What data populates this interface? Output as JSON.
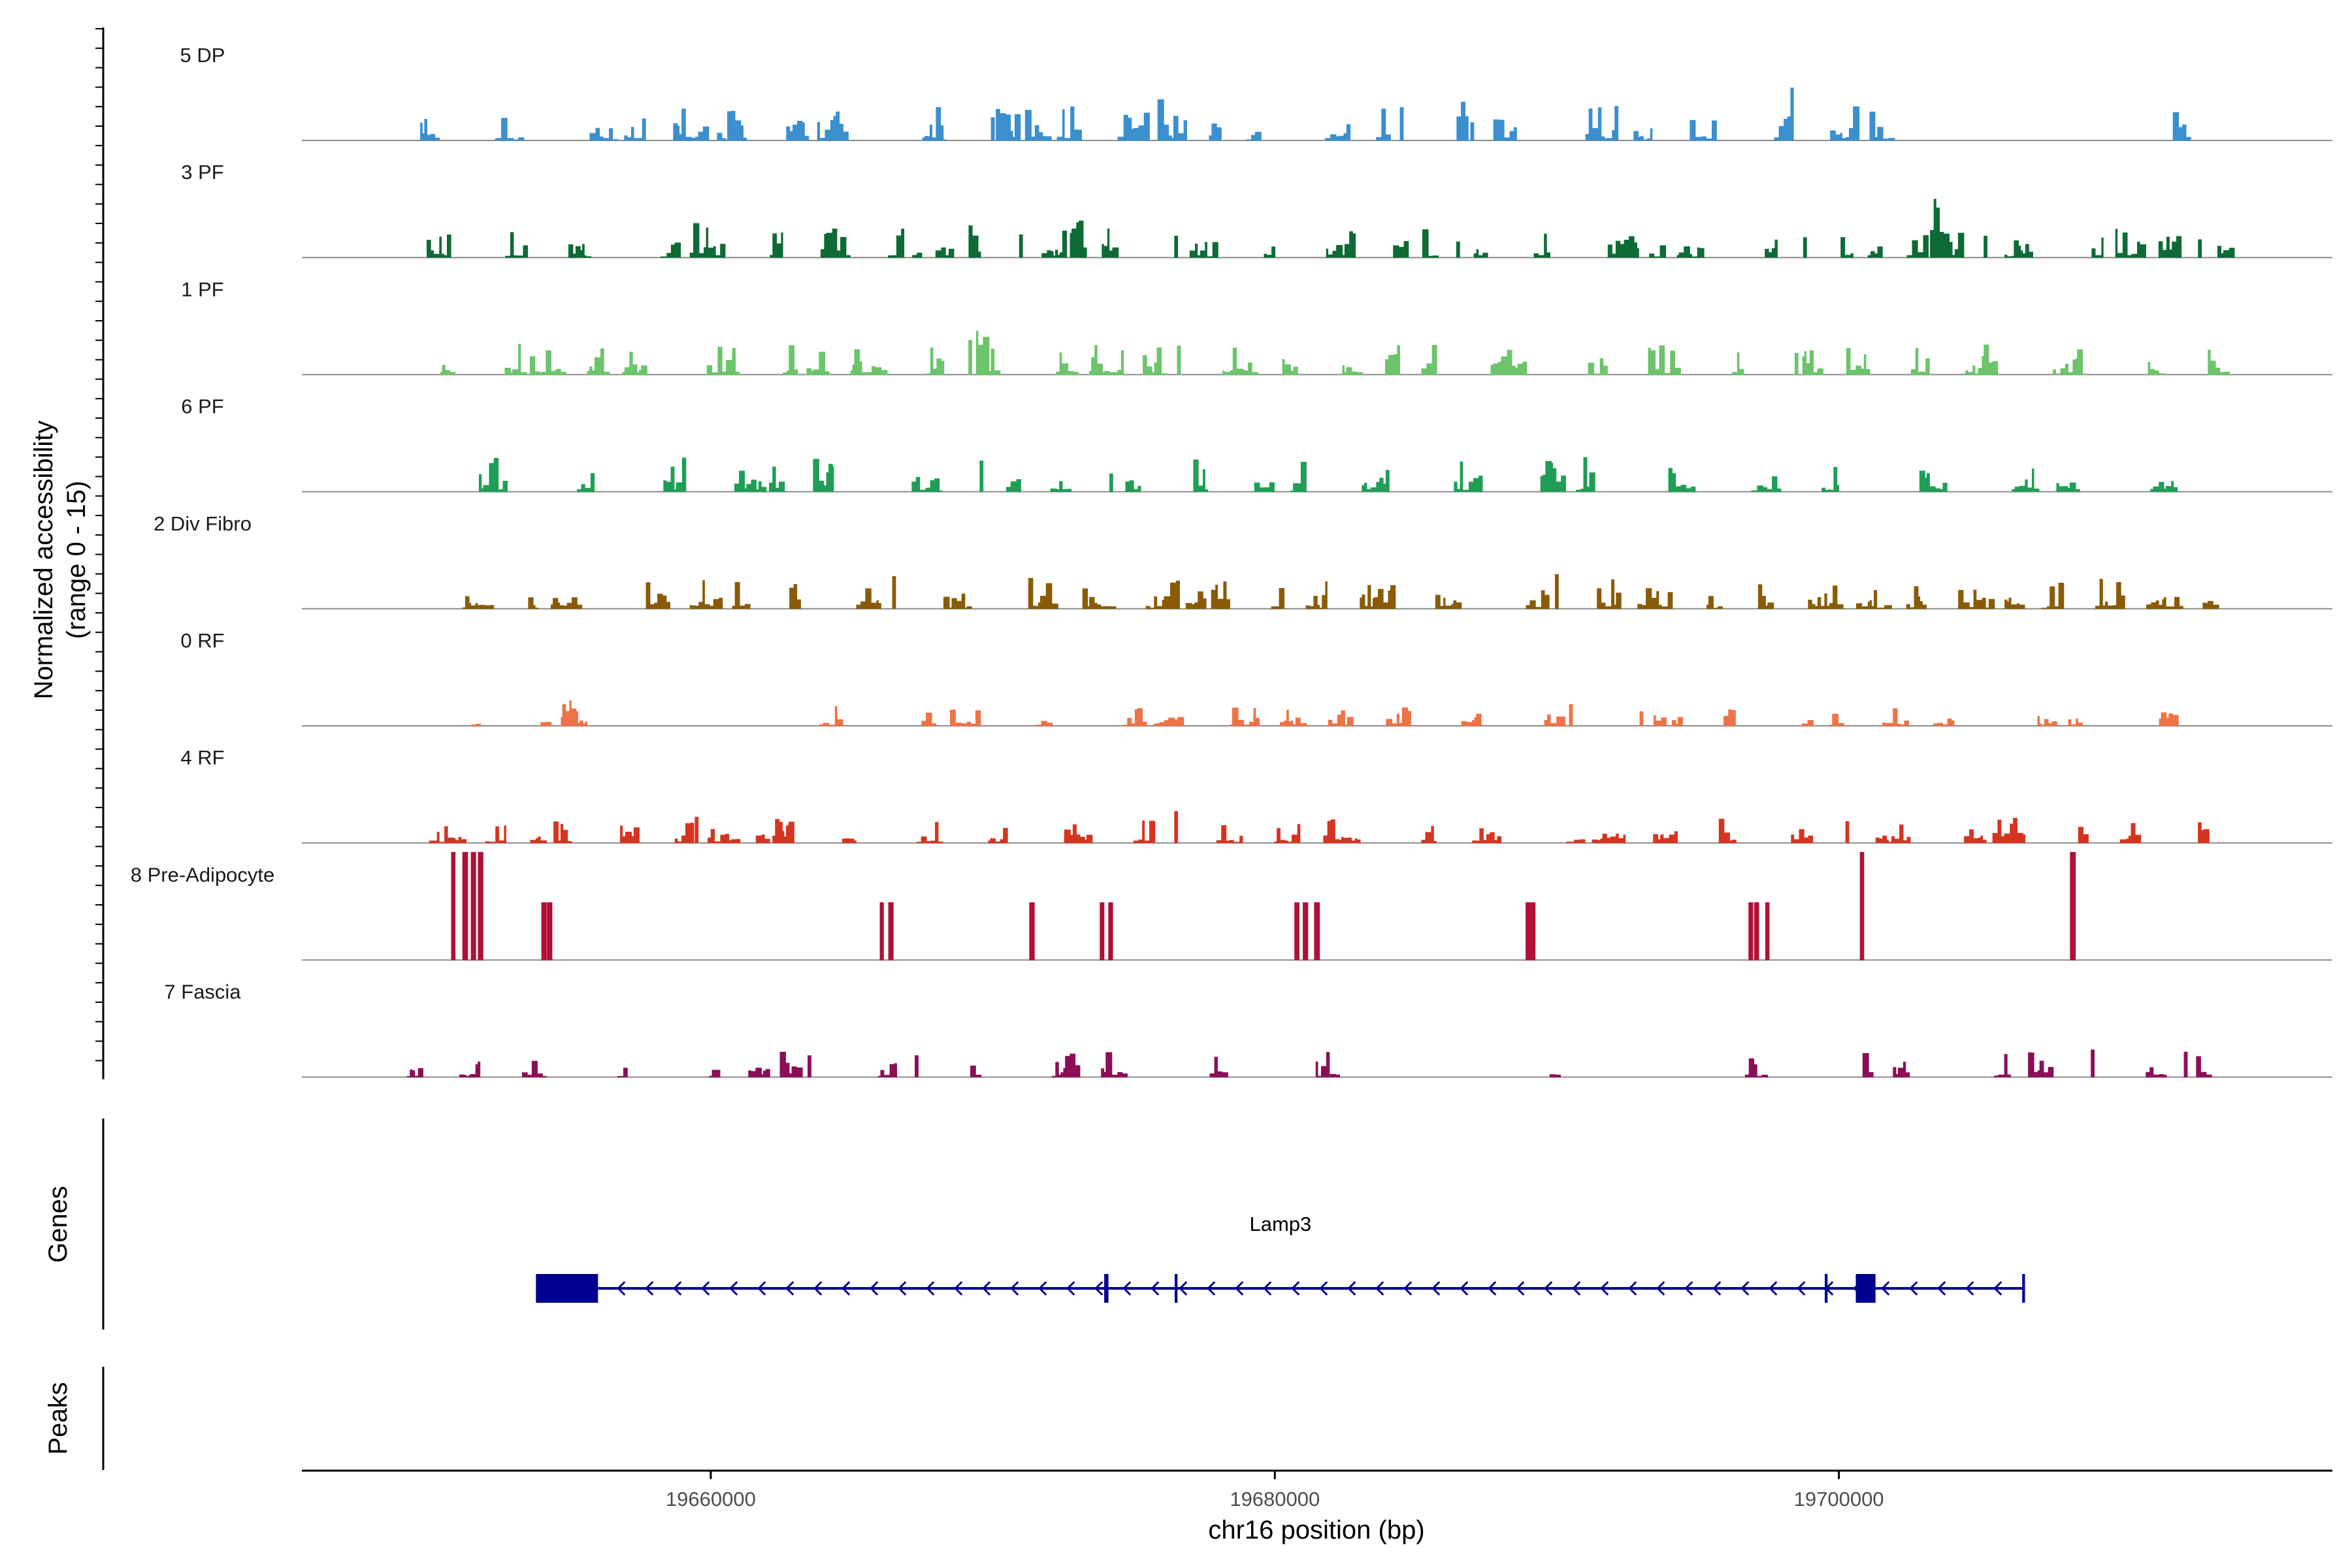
{
  "chart_data": {
    "type": "area",
    "title": "",
    "region": {
      "chrom": "chr16",
      "start": 19645500,
      "end": 19717500
    },
    "xlabel": "chr16 position (bp)",
    "xticks": [
      19660000,
      19680000,
      19700000
    ],
    "xtick_labels": [
      "19660000",
      "19680000",
      "19700000"
    ],
    "ylabel_line1": "Normalized accessibility",
    "ylabel_line2": "(range 0 - 15)",
    "ylim": [
      0,
      15
    ],
    "tracks": [
      {
        "name": "5 DP",
        "color": "#3a8fcf",
        "seed": 11,
        "density": 0.55,
        "amplitude": 4.5,
        "gaps": [
          [
            19646800,
            19649000
          ],
          [
            19702800,
            19709500
          ]
        ],
        "peaks": [
          [
            19664500,
            4.0
          ],
          [
            19670000,
            3.2
          ],
          [
            19675500,
            3.8
          ],
          [
            19684500,
            4.6
          ],
          [
            19687000,
            2.5
          ],
          [
            19698300,
            3.0
          ]
        ]
      },
      {
        "name": "3 PF",
        "color": "#0e6b35",
        "seed": 23,
        "density": 0.55,
        "amplitude": 4.5,
        "gaps": [
          [
            19645500,
            19648400
          ]
        ],
        "peaks": [
          [
            19671000,
            3.2
          ],
          [
            19672800,
            3.4
          ],
          [
            19676500,
            3.0
          ],
          [
            19686500,
            2.2
          ],
          [
            19698800,
            2.8
          ],
          [
            19703300,
            3.8
          ],
          [
            19705200,
            3.0
          ],
          [
            19712800,
            2.5
          ]
        ]
      },
      {
        "name": "1 PF",
        "color": "#6cc46b",
        "seed": 37,
        "density": 0.65,
        "amplitude": 4.0,
        "gaps": [
          [
            19645500,
            19648800
          ]
        ],
        "peaks": [
          [
            19669200,
            4.8
          ],
          [
            19676600,
            4.0
          ],
          [
            19688200,
            2.5
          ],
          [
            19698500,
            3.0
          ]
        ]
      },
      {
        "name": "6 PF",
        "color": "#1f9e55",
        "seed": 41,
        "density": 0.5,
        "amplitude": 4.5,
        "gaps": [
          [
            19645500,
            19648800
          ],
          [
            19703000,
            19705500
          ]
        ],
        "peaks": [
          [
            19664300,
            3.5
          ],
          [
            19669600,
            4.3
          ],
          [
            19674200,
            2.5
          ],
          [
            19684000,
            3.0
          ],
          [
            19689800,
            4.0
          ]
        ]
      },
      {
        "name": "2 Div Fibro",
        "color": "#8a5b07",
        "seed": 53,
        "density": 0.65,
        "amplitude": 4.0,
        "gaps": [
          [
            19645500,
            19649300
          ]
        ],
        "peaks": [
          [
            19666500,
            4.5
          ],
          [
            19676500,
            3.5
          ],
          [
            19690000,
            4.8
          ]
        ]
      },
      {
        "name": "0 RF",
        "color": "#ee7346",
        "seed": 67,
        "density": 0.45,
        "amplitude": 2.5,
        "gaps": [
          [
            19645500,
            19650500
          ],
          [
            19656000,
            19663500
          ]
        ],
        "peaks": [
          [
            19654800,
            3.0
          ],
          [
            19690500,
            3.0
          ],
          [
            19693000,
            2.0
          ]
        ]
      },
      {
        "name": "4 RF",
        "color": "#d53421",
        "seed": 79,
        "density": 0.65,
        "amplitude": 3.2,
        "gaps": [
          [
            19645500,
            19648800
          ]
        ],
        "peaks": [
          [
            19659500,
            3.6
          ],
          [
            19676500,
            4.4
          ],
          [
            19700300,
            3.0
          ]
        ]
      },
      {
        "name": "8 Pre-Adipocyte",
        "color": "#b01035",
        "seed": 83,
        "mode": "spikes",
        "amplitude": 15,
        "spikes": [
          [
            19650800,
            15
          ],
          [
            19651200,
            15
          ],
          [
            19651500,
            15
          ],
          [
            19651750,
            15
          ],
          [
            19654000,
            8
          ],
          [
            19654200,
            8
          ],
          [
            19666000,
            8
          ],
          [
            19666300,
            8
          ],
          [
            19671300,
            8
          ],
          [
            19673800,
            8
          ],
          [
            19674100,
            8
          ],
          [
            19680700,
            8
          ],
          [
            19681000,
            8
          ],
          [
            19681400,
            8
          ],
          [
            19688900,
            8
          ],
          [
            19689100,
            8
          ],
          [
            19696800,
            8
          ],
          [
            19697000,
            8
          ],
          [
            19697400,
            8
          ],
          [
            19700750,
            15
          ],
          [
            19708200,
            15
          ]
        ]
      },
      {
        "name": "7 Fascia",
        "color": "#8b0e57",
        "seed": 97,
        "density": 0.4,
        "amplitude": 3.2,
        "gaps": [
          [
            19645500,
            19648800
          ],
          [
            19684000,
            19687000
          ],
          [
            19690500,
            19694000
          ]
        ],
        "peaks": [
          [
            19663500,
            3.0
          ],
          [
            19667300,
            3.0
          ],
          [
            19709000,
            3.8
          ],
          [
            19712300,
            3.5
          ]
        ]
      }
    ],
    "genes_panel_label": "Genes",
    "peaks_panel_label": "Peaks",
    "gene": {
      "name": "Lamp3",
      "strand": "-",
      "start": 19653800,
      "end": 19706600,
      "color": "#000090",
      "exons": [
        [
          19653800,
          19656000
        ],
        [
          19673950,
          19674100
        ],
        [
          19676450,
          19676550
        ],
        [
          19699500,
          19699600
        ],
        [
          19700600,
          19701300
        ],
        [
          19706500,
          19706600
        ]
      ]
    }
  }
}
